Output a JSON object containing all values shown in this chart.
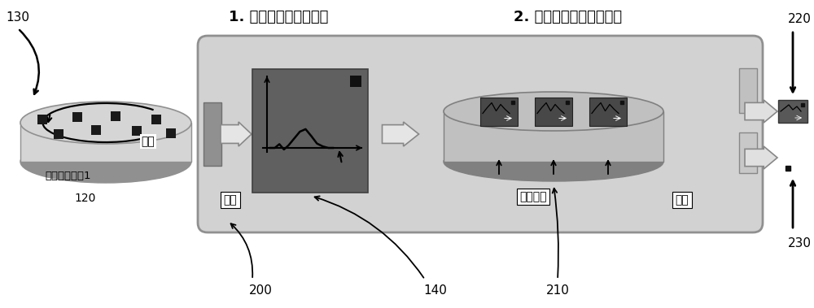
{
  "title1": "1. 转换为高阶数据模型",
  "title2": "2. 处理二阶数据模型输入",
  "label_130": "130",
  "label_120": "120",
  "label_200": "200",
  "label_140": "140",
  "label_210": "210",
  "label_220": "220",
  "label_230": "230",
  "text_iterate": "迭代",
  "text_first_order": "一阶窗口算子1",
  "text_upgrade": "升阶",
  "text_high_order": "高阶算子",
  "text_downgrade": "降阶",
  "bg_color": "#ffffff",
  "main_box_color": "#d0d0d0",
  "main_box_edge": "#909090",
  "tab_color": "#999999",
  "dark_panel_color": "#606060",
  "disk_outer_face": "#c8c8c8",
  "disk_outer_edge": "#808080",
  "disk_inner_face": "#b8b8b8",
  "disk_inner_edge": "#666666",
  "mini_panel_color": "#484848",
  "output_panel_color": "#585858",
  "font_size_title": 13,
  "font_size_label": 10,
  "font_size_small": 9
}
